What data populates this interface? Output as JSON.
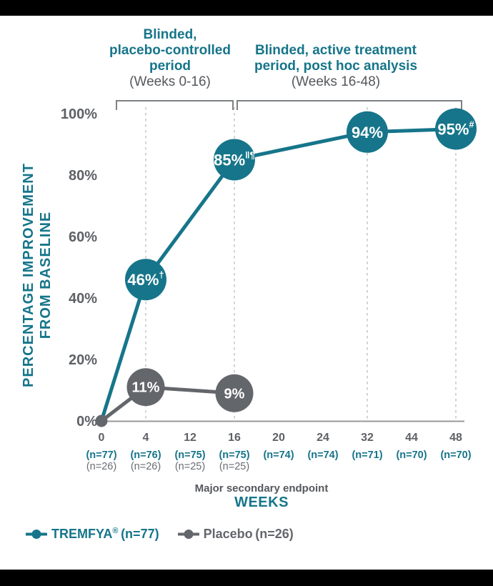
{
  "colors": {
    "teal": "#16758A",
    "placebo_gray": "#63666B",
    "tick_label_gray": "#5E6165",
    "n_gray": "#6A6D71",
    "subtitle_gray": "#55585C",
    "gridline": "#C6C8CA",
    "axis_line": "#97999C",
    "bracket": "#7E8184",
    "bar_black": "#000000",
    "circle_text": "#FFFFFF"
  },
  "annotations": {
    "period1": {
      "line1": "Blinded,",
      "line2": "placebo-controlled",
      "line3": "period",
      "sub": "(Weeks 0-16)"
    },
    "period2": {
      "line1": "Blinded, active treatment",
      "line2": "period, post hoc analysis",
      "sub": "(Weeks 16-48)"
    }
  },
  "chart_data": {
    "type": "line",
    "ylabel_line1": "PERCENTAGE IMPROVEMENT",
    "ylabel_line2": "FROM BASELINE",
    "xlabel": "WEEKS",
    "x_sublabel": "Major secondary endpoint",
    "x_weeks": [
      0,
      4,
      12,
      16,
      20,
      24,
      32,
      44,
      48
    ],
    "ylim": [
      0,
      100
    ],
    "y_ticks": [
      {
        "label": "100%",
        "value": 100
      },
      {
        "label": "80%",
        "value": 80
      },
      {
        "label": "60%",
        "value": 60
      },
      {
        "label": "40%",
        "value": 40
      },
      {
        "label": "20%",
        "value": 20
      },
      {
        "label": "0%",
        "value": 0
      }
    ],
    "gridline_weeks": [
      4,
      16,
      32,
      48
    ],
    "series": [
      {
        "name": "TREMFYA",
        "key": "tremfya",
        "color": "#16758A",
        "points": [
          {
            "week": 0,
            "value": 0
          },
          {
            "week": 4,
            "value": 46,
            "label": "46%",
            "sup": "†"
          },
          {
            "week": 16,
            "value": 85,
            "label": "85%",
            "sup": "‖¶"
          },
          {
            "week": 32,
            "value": 94,
            "label": "94%",
            "sup": ""
          },
          {
            "week": 48,
            "value": 95,
            "label": "95%",
            "sup": "#"
          }
        ],
        "n_by_week": [
          "(n=77)",
          "(n=76)",
          "(n=75)",
          "(n=75)",
          "(n=74)",
          "(n=74)",
          "(n=71)",
          "(n=70)",
          "(n=70)"
        ]
      },
      {
        "name": "Placebo",
        "key": "placebo",
        "color": "#63666B",
        "points": [
          {
            "week": 0,
            "value": 0
          },
          {
            "week": 4,
            "value": 11,
            "label": "11%",
            "sup": ""
          },
          {
            "week": 16,
            "value": 9,
            "label": "9%",
            "sup": ""
          }
        ],
        "n_by_week": [
          "(n=26)",
          "(n=26)",
          "(n=25)",
          "(n=25)"
        ]
      }
    ],
    "legend": [
      {
        "brand": "TREMFYA",
        "reg": "®",
        "n": "(n=77)"
      },
      {
        "brand": "Placebo",
        "reg": "",
        "n": "(n=26)"
      }
    ]
  }
}
